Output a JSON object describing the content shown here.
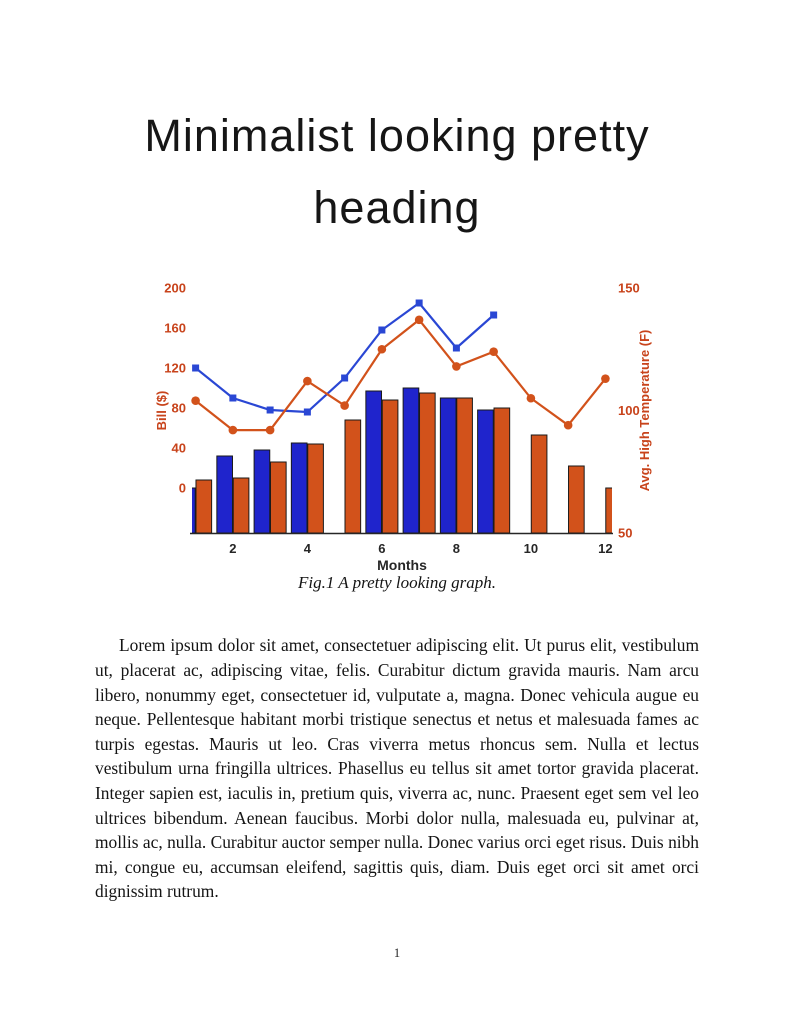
{
  "page": {
    "heading": "Minimalist looking pretty heading",
    "figure_caption": "Fig.1 A pretty looking graph.",
    "body_paragraph": "Lorem ipsum dolor sit amet, consectetuer adipiscing elit. Ut purus elit, vestibulum ut, placerat ac, adipiscing vitae, felis. Curabitur dictum gravida mauris. Nam arcu libero, nonummy eget, consectetuer id, vulputate a, magna. Donec vehicula augue eu neque. Pellentesque habitant morbi tristique senectus et netus et malesuada fames ac turpis egestas. Mauris ut leo. Cras viverra metus rhoncus sem. Nulla et lectus vestibulum urna fringilla ultrices. Phasellus eu tellus sit amet tortor gravida placerat. Integer sapien est, iaculis in, pretium quis, viverra ac, nunc. Praesent eget sem vel leo ultrices bibendum. Aenean faucibus. Morbi dolor nulla, malesuada eu, pulvinar at, mollis ac, nulla. Curabitur auctor semper nulla. Donec varius orci eget risus. Duis nibh mi, congue eu, accumsan eleifend, sagittis quis, diam. Duis eget orci sit amet orci dignissim rutrum.",
    "page_number": "1"
  },
  "chart_data": {
    "type": "bar",
    "subtype": "grouped bars with two overlaid marker lines, dual y-axes",
    "x": [
      1,
      2,
      3,
      4,
      5,
      6,
      7,
      8,
      9,
      10,
      11,
      12
    ],
    "xlim": [
      0.93,
      12.15
    ],
    "x_ticks": [
      2,
      4,
      6,
      8,
      10,
      12
    ],
    "xlabel": "Months",
    "x_axis_color": "#262626",
    "left_axis": {
      "label": "Bill ($)",
      "ticks": [
        0,
        40,
        80,
        120,
        160,
        200
      ],
      "lim": [
        -45,
        200
      ],
      "color": "#c8431b"
    },
    "right_axis": {
      "label": "Avg. High Temperature (F)",
      "ticks": [
        50,
        100,
        150
      ],
      "lim": [
        50,
        150
      ],
      "color": "#c8431b"
    },
    "bar_series": [
      {
        "name": "blue-bars",
        "axis": "left",
        "color": "#1f24cc",
        "edge": "#1a1a1a",
        "values": [
          0,
          32,
          38,
          45,
          null,
          97,
          100,
          90,
          78,
          null,
          null,
          null
        ]
      },
      {
        "name": "orange-bars",
        "axis": "left",
        "color": "#d2521b",
        "edge": "#1a1a1a",
        "values": [
          8,
          10,
          26,
          44,
          68,
          88,
          95,
          90,
          80,
          53,
          22,
          0
        ]
      }
    ],
    "line_series": [
      {
        "name": "blue-line",
        "axis": "left",
        "marker": "square",
        "color": "#2a47d4",
        "values": [
          120,
          90,
          78,
          76,
          110,
          158,
          185,
          140,
          173,
          null,
          null,
          null
        ]
      },
      {
        "name": "orange-line",
        "axis": "right",
        "marker": "circle",
        "color": "#d2521b",
        "values": [
          104,
          92,
          92,
          112,
          102,
          125,
          137,
          118,
          124,
          105,
          94,
          113
        ]
      }
    ],
    "baseline": "bars drawn from axis bottom",
    "legend": "none",
    "grid": false
  }
}
